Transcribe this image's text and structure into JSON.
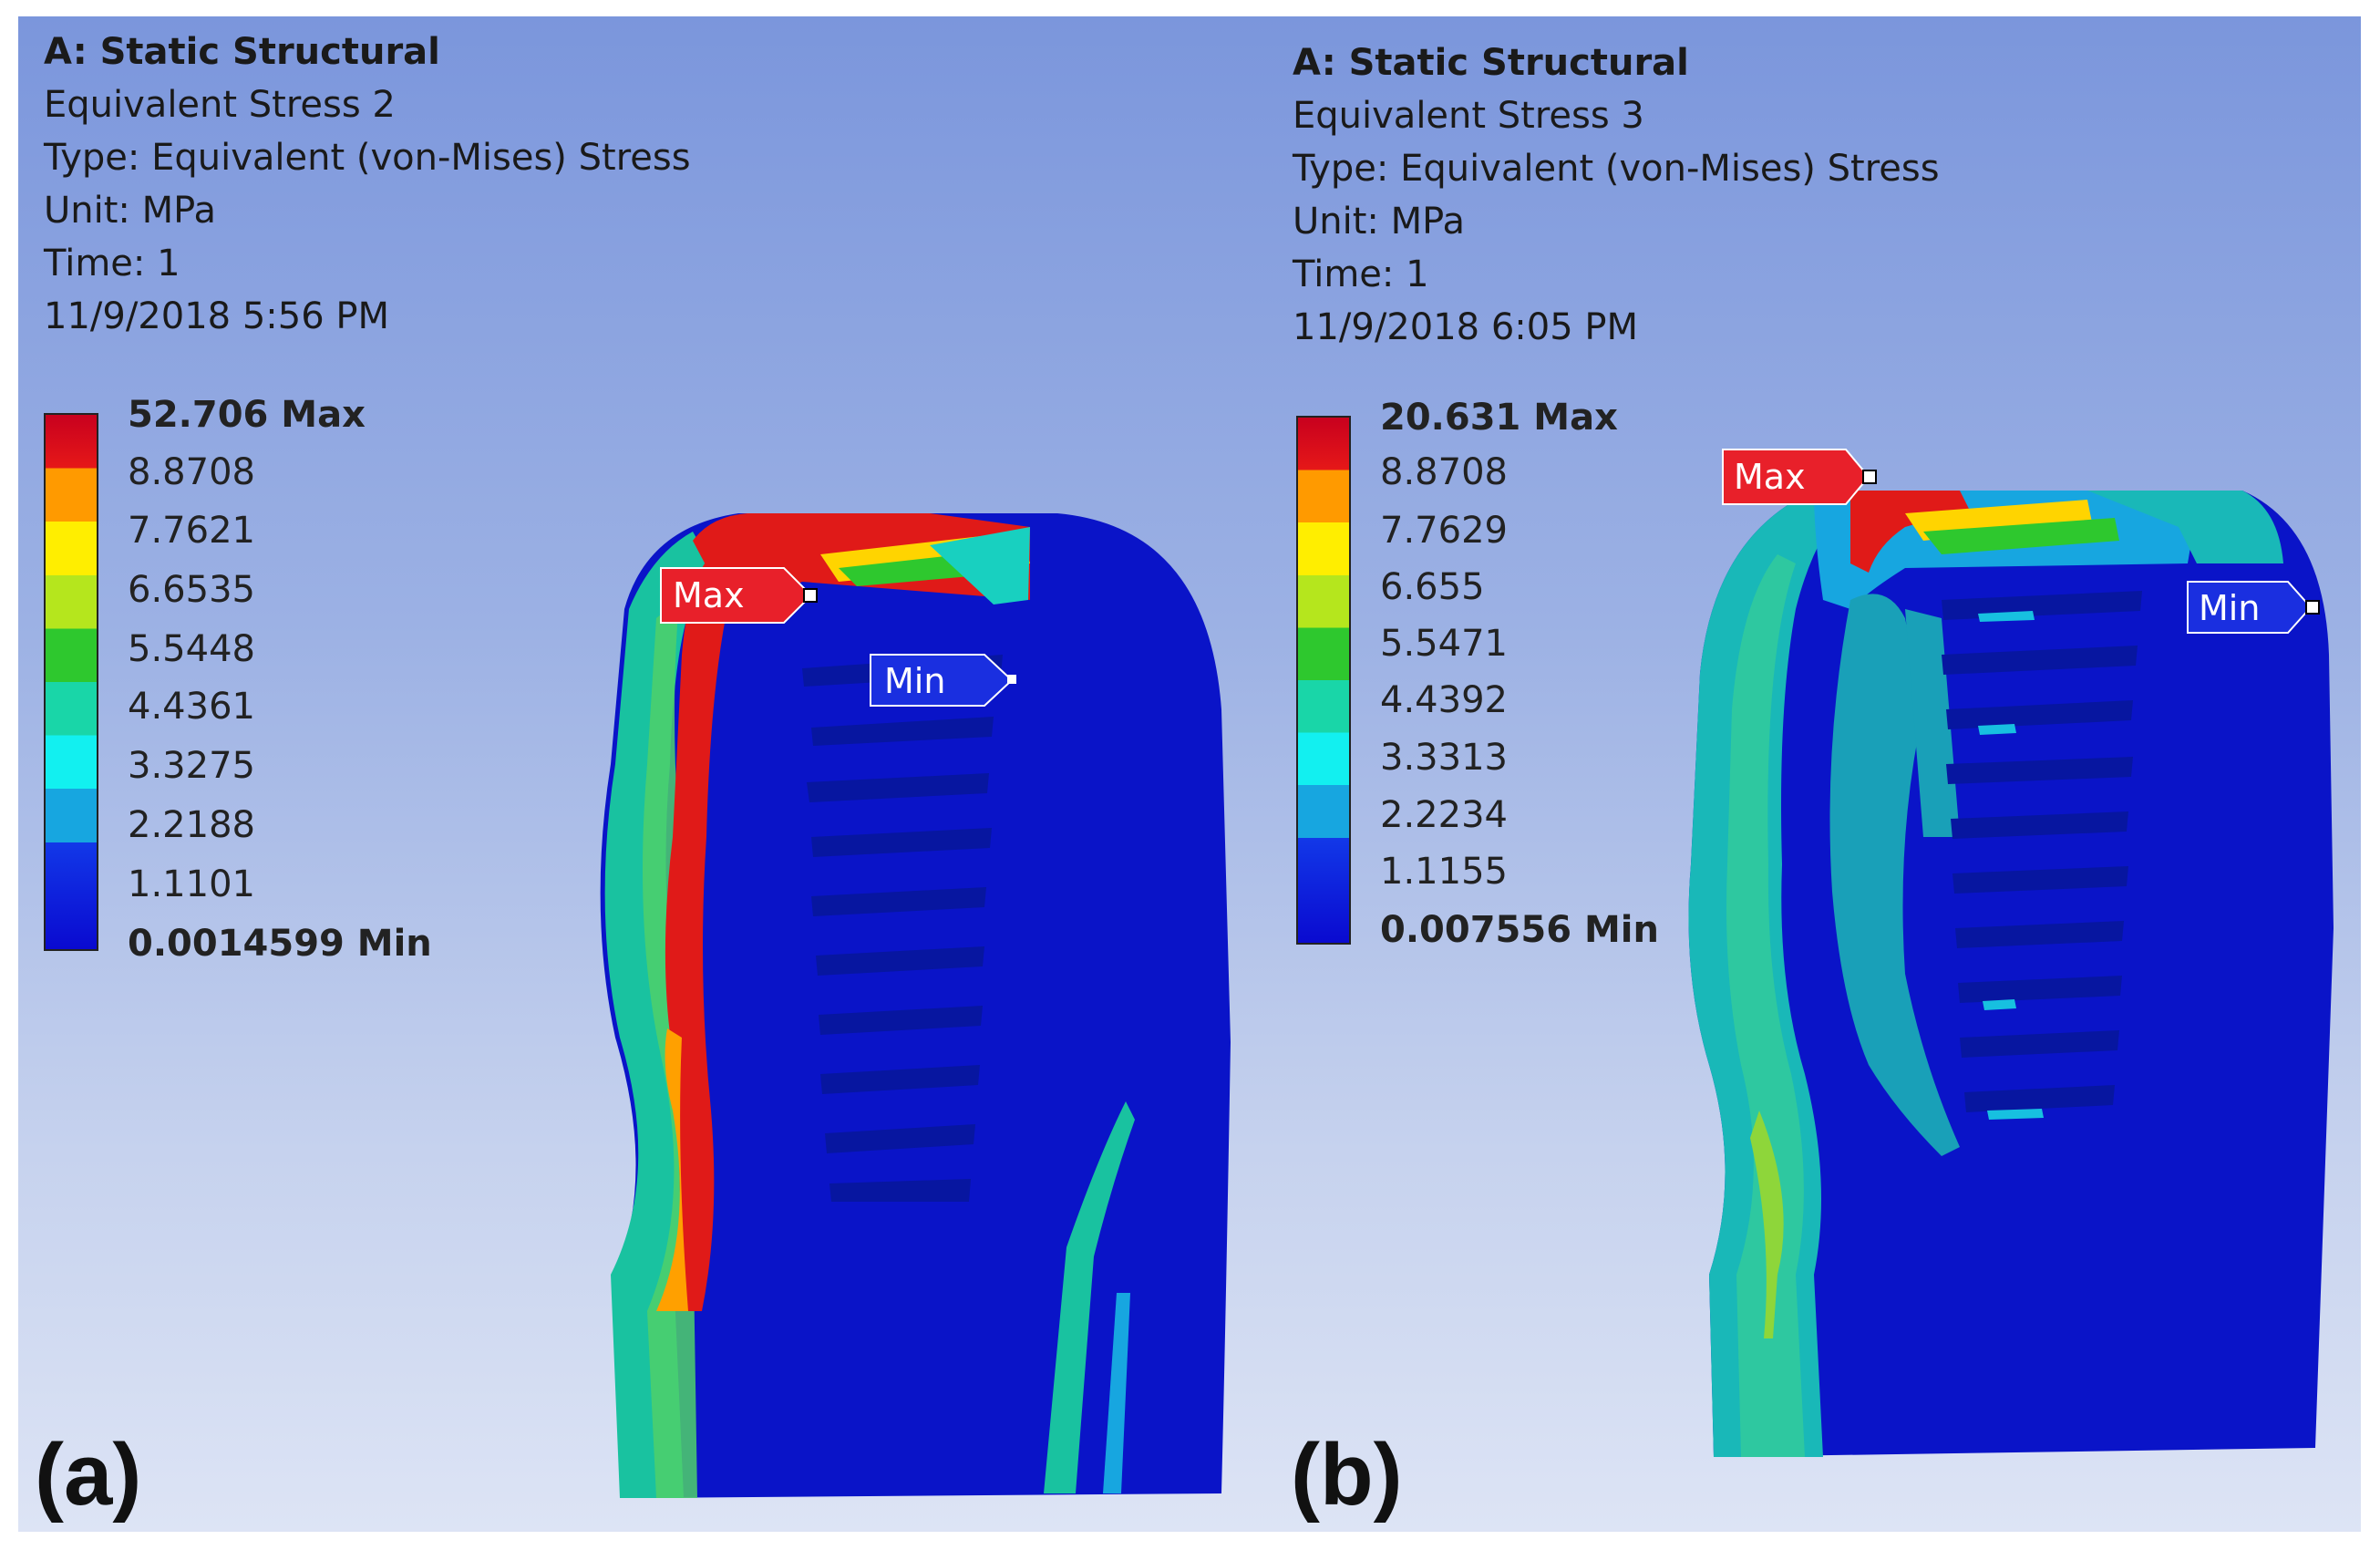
{
  "panels": [
    {
      "figure_label": "(a)",
      "header": {
        "system": "A: Static Structural",
        "result": "Equivalent Stress 2",
        "type": "Type: Equivalent (von-Mises) Stress",
        "unit": "Unit: MPa",
        "time": "Time: 1",
        "timestamp": "11/9/2018 5:56 PM"
      },
      "legend": [
        "52.706 Max",
        "8.8708",
        "7.7621",
        "6.6535",
        "5.5448",
        "4.4361",
        "3.3275",
        "2.2188",
        "1.1101",
        "0.0014599 Min"
      ],
      "probes": {
        "max": "Max",
        "min": "Min"
      }
    },
    {
      "figure_label": "(b)",
      "header": {
        "system": "A: Static Structural",
        "result": "Equivalent Stress 3",
        "type": "Type: Equivalent (von-Mises) Stress",
        "unit": "Unit: MPa",
        "time": "Time: 1",
        "timestamp": "11/9/2018 6:05 PM"
      },
      "legend": [
        "20.631 Max",
        "8.8708",
        "7.7629",
        "6.655",
        "5.5471",
        "4.4392",
        "3.3313",
        "2.2234",
        "1.1155",
        "0.007556 Min"
      ],
      "probes": {
        "max": "Max",
        "min": "Min"
      }
    }
  ],
  "colors": {
    "max_probe": "#e8202a",
    "min_probe": "#1a2fe0",
    "low_stress": "#0a14c8",
    "high_stress": "#d81818"
  }
}
